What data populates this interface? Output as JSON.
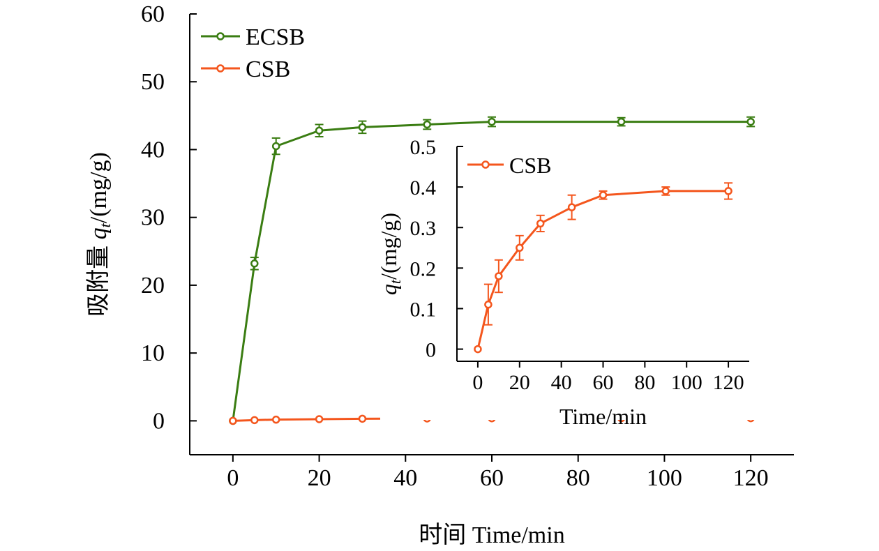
{
  "chart_data": [
    {
      "id": "main",
      "type": "line",
      "xlabel": "时间 Time/min",
      "ylabel": {
        "prefix": "吸附量 ",
        "symbol": "q",
        "subscript": "t",
        "suffix": "/(mg/g)"
      },
      "xlim": [
        -10,
        130
      ],
      "ylim": [
        -5,
        60
      ],
      "xticks": [
        0,
        20,
        40,
        60,
        80,
        100,
        120
      ],
      "yticks": [
        0,
        10,
        20,
        30,
        40,
        50,
        60
      ],
      "grid": false,
      "legend_position": "top-left",
      "series": [
        {
          "name": "ECSB",
          "color": "#3a7d12",
          "x": [
            0,
            5,
            10,
            20,
            30,
            45,
            60,
            90,
            120
          ],
          "y": [
            0,
            23.2,
            40.5,
            42.8,
            43.3,
            43.7,
            44.1,
            44.1,
            44.1
          ],
          "err": [
            0,
            0.9,
            1.2,
            0.9,
            0.9,
            0.7,
            0.7,
            0.6,
            0.7
          ]
        },
        {
          "name": "CSB",
          "color": "#f4561d",
          "x": [
            0,
            5,
            10,
            20,
            30,
            45,
            60,
            90,
            120
          ],
          "y": [
            0,
            0.11,
            0.18,
            0.25,
            0.31,
            0.35,
            0.38,
            0.39,
            0.39
          ],
          "err": [
            0,
            0,
            0,
            0,
            0,
            0,
            0,
            0,
            0
          ]
        }
      ]
    },
    {
      "id": "inset",
      "type": "line",
      "xlabel": "Time/min",
      "ylabel": {
        "prefix": "",
        "symbol": "q",
        "subscript": "t",
        "suffix": "/(mg/g)"
      },
      "xlim": [
        -10,
        130
      ],
      "ylim": [
        -0.03,
        0.5
      ],
      "xticks": [
        0,
        20,
        40,
        60,
        80,
        100,
        120
      ],
      "yticks": [
        0,
        0.1,
        0.2,
        0.3,
        0.4,
        0.5
      ],
      "ytick_labels": [
        "0",
        "0.1",
        "0.2",
        "0.3",
        "0.4",
        "0.5"
      ],
      "grid": false,
      "legend_position": "top-left",
      "series": [
        {
          "name": "CSB",
          "color": "#f4561d",
          "x": [
            0,
            5,
            10,
            20,
            30,
            45,
            60,
            90,
            120
          ],
          "y": [
            0,
            0.11,
            0.18,
            0.25,
            0.31,
            0.35,
            0.38,
            0.39,
            0.39
          ],
          "err": [
            0,
            0.05,
            0.04,
            0.03,
            0.02,
            0.03,
            0.01,
            0.01,
            0.02
          ]
        }
      ]
    }
  ]
}
